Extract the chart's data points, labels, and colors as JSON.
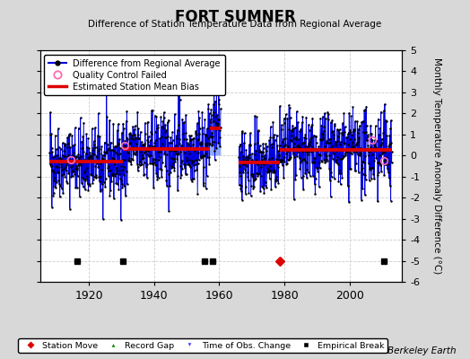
{
  "title": "FORT SUMNER",
  "subtitle": "Difference of Station Temperature Data from Regional Average",
  "ylabel": "Monthly Temperature Anomaly Difference (°C)",
  "credit": "Berkeley Earth",
  "xlim": [
    1905,
    2016
  ],
  "ylim": [
    -6,
    5
  ],
  "yticks": [
    -6,
    -5,
    -4,
    -3,
    -2,
    -1,
    0,
    1,
    2,
    3,
    4,
    5
  ],
  "xticks": [
    1920,
    1940,
    1960,
    1980,
    2000
  ],
  "fig_bg_color": "#d8d8d8",
  "plot_bg_color": "#ffffff",
  "grid_color": "#cccccc",
  "line_color": "#0000dd",
  "stem_color": "#6688ff",
  "dot_color": "#000000",
  "bias_color": "#dd0000",
  "qc_color": "#ff69b4",
  "seed": 42,
  "start_year": 1908,
  "end_year": 2013,
  "gap_start": 1960.5,
  "gap_end": 1966.0,
  "bias_segments": [
    {
      "start": 1908.0,
      "end": 1930.5,
      "value": -0.3
    },
    {
      "start": 1930.5,
      "end": 1957.0,
      "value": 0.3
    },
    {
      "start": 1957.0,
      "end": 1960.5,
      "value": 1.3
    },
    {
      "start": 1960.5,
      "end": 1966.0,
      "value": -0.35
    },
    {
      "start": 1966.0,
      "end": 1978.5,
      "value": -0.35
    },
    {
      "start": 1978.5,
      "end": 2013.0,
      "value": 0.25
    }
  ],
  "qc_failed": [
    1914.5,
    1931.0,
    2007.0,
    2010.5
  ],
  "obs_changes": [],
  "empirical_breaks": [
    1916.5,
    1930.5,
    1955.5,
    1958.0,
    2010.5
  ],
  "station_move_year": 1978.5,
  "marker_y": -5.0,
  "bottom_legend_items": [
    {
      "label": "Station Move",
      "marker": "D",
      "color": "#dd0000"
    },
    {
      "label": "Record Gap",
      "marker": "^",
      "color": "#008800"
    },
    {
      "label": "Time of Obs. Change",
      "marker": "v",
      "color": "#4444ff"
    },
    {
      "label": "Empirical Break",
      "marker": "s",
      "color": "#000000"
    }
  ]
}
